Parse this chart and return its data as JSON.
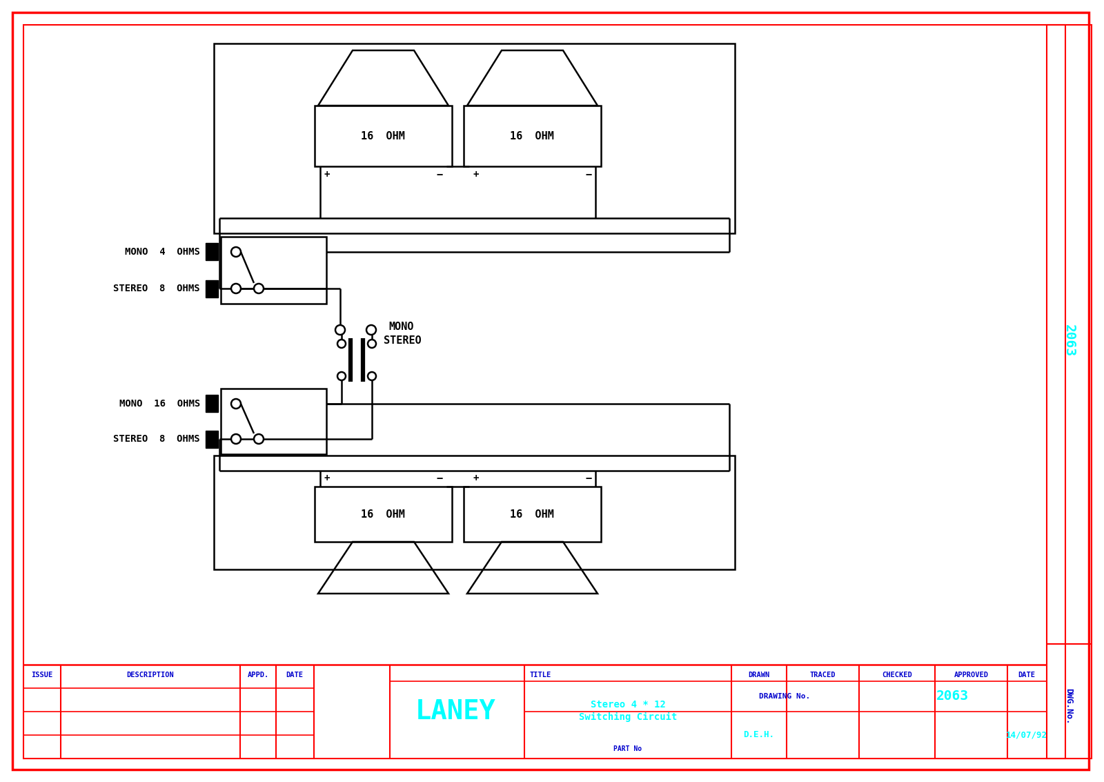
{
  "bg_color": "#ffffff",
  "red_color": "#ff0000",
  "cyan_color": "#00ffff",
  "blue_color": "#0000cd",
  "mono_4ohm_text": "MONO  4  OHMS",
  "stereo_8ohm_top_text": "STEREO  8  OHMS",
  "mono_16ohm_text": "MONO  16  OHMS",
  "stereo_8ohm_bot_text": "STEREO  8  OHMS",
  "mono_label": "MONO",
  "stereo_label": "STEREO",
  "ohm16_label": "16  OHM",
  "dwg_no_text": "DWG.No.",
  "dwg_no_val": "2063",
  "issue_text": "ISSUE",
  "description_text": "DESCRIPTION",
  "appd_text": "APPD.",
  "date_text": "DATE",
  "title_label": "TITLE",
  "drawn_text": "DRAWN",
  "traced_text": "TRACED",
  "checked_text": "CHECKED",
  "approved_text": "APPROVED",
  "drawn_val": "D.E.H.",
  "date_val": "14/07/92",
  "drawing_no_text": "DRAWING No.",
  "drawing_no_val": "2063",
  "laney_text": "LANEY",
  "title_main1": "Stereo 4 * 12",
  "title_main2": "Switching Circuit",
  "part_no_text": "PART No"
}
